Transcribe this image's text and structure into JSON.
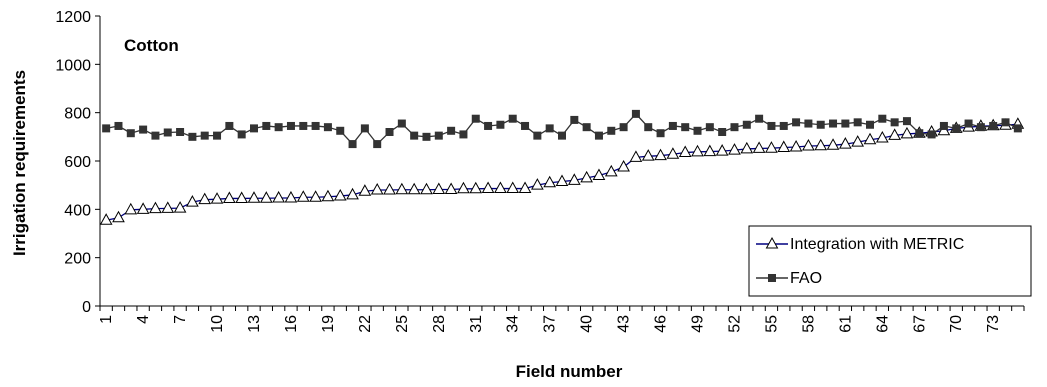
{
  "chart_data": {
    "type": "line",
    "annotation": "Cotton",
    "xlabel": "Field number",
    "ylabel": "Irrigation requirements",
    "ylim": [
      0,
      1200
    ],
    "yticks": [
      0,
      200,
      400,
      600,
      800,
      1000,
      1200
    ],
    "x": [
      1,
      2,
      3,
      4,
      5,
      6,
      7,
      8,
      9,
      10,
      11,
      12,
      13,
      14,
      15,
      16,
      17,
      18,
      19,
      20,
      21,
      22,
      23,
      24,
      25,
      26,
      27,
      28,
      29,
      30,
      31,
      32,
      33,
      34,
      35,
      36,
      37,
      38,
      39,
      40,
      41,
      42,
      43,
      44,
      45,
      46,
      47,
      48,
      49,
      50,
      51,
      52,
      53,
      54,
      55,
      56,
      57,
      58,
      59,
      60,
      61,
      62,
      63,
      64,
      65,
      66,
      67,
      68,
      69,
      70,
      71,
      72,
      73,
      74,
      75
    ],
    "xtick_labels": [
      "1",
      "4",
      "7",
      "10",
      "13",
      "16",
      "19",
      "22",
      "25",
      "28",
      "31",
      "34",
      "37",
      "40",
      "43",
      "46",
      "49",
      "52",
      "55",
      "58",
      "61",
      "64",
      "67",
      "70",
      "73"
    ],
    "grid": false,
    "legend_position": "bottom-right",
    "series": [
      {
        "name": "Integration with METRIC",
        "color": "#000080",
        "marker": "open-triangle",
        "values": [
          355,
          365,
          398,
          400,
          403,
          404,
          405,
          430,
          440,
          442,
          445,
          445,
          446,
          446,
          447,
          447,
          450,
          450,
          452,
          455,
          460,
          475,
          480,
          480,
          481,
          481,
          481,
          482,
          482,
          485,
          485,
          486,
          486,
          486,
          486,
          500,
          510,
          515,
          520,
          530,
          540,
          555,
          575,
          615,
          620,
          622,
          628,
          635,
          638,
          639,
          641,
          645,
          650,
          652,
          653,
          656,
          658,
          662,
          663,
          665,
          670,
          678,
          688,
          695,
          706,
          712,
          715,
          720,
          725,
          735,
          740,
          744,
          746,
          748,
          752
        ]
      },
      {
        "name": "FAO",
        "color": "#333333",
        "marker": "filled-square",
        "values": [
          735,
          745,
          715,
          730,
          705,
          718,
          720,
          700,
          705,
          705,
          745,
          710,
          735,
          745,
          740,
          745,
          745,
          745,
          740,
          725,
          670,
          735,
          670,
          720,
          755,
          705,
          700,
          705,
          725,
          710,
          775,
          745,
          750,
          775,
          745,
          705,
          735,
          705,
          770,
          740,
          705,
          725,
          740,
          795,
          740,
          715,
          745,
          740,
          725,
          740,
          720,
          740,
          750,
          775,
          745,
          745,
          760,
          755,
          750,
          755,
          755,
          760,
          750,
          775,
          760,
          765,
          715,
          710,
          745,
          735,
          755,
          740,
          745,
          760,
          735
        ]
      }
    ]
  }
}
